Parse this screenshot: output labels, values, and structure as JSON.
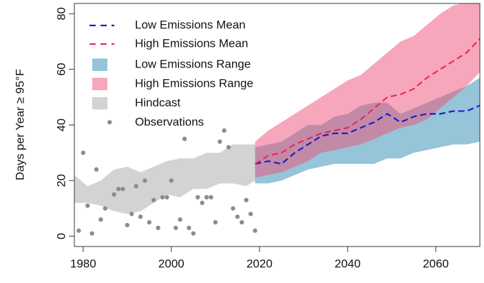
{
  "chart_data": {
    "type": "line",
    "y_label": "Days per Year ≥ 95°F",
    "xlim": [
      1978,
      2070
    ],
    "ylim": [
      -3.7,
      83.7
    ],
    "xticks": [
      1980,
      2000,
      2020,
      2040,
      2060
    ],
    "yticks": [
      0,
      20,
      40,
      60,
      80
    ],
    "legend": "top-left",
    "series": [
      {
        "name": "Low Emissions Mean",
        "type": "line",
        "color": "#1a1acc",
        "x": [
          2019,
          2022,
          2025,
          2028,
          2031,
          2034,
          2037,
          2040,
          2043,
          2046,
          2049,
          2052,
          2055,
          2058,
          2061,
          2064,
          2067,
          2070
        ],
        "values": [
          26,
          27,
          26,
          30,
          33,
          36,
          37,
          37,
          39,
          41,
          44,
          41,
          43,
          44,
          44,
          45,
          45,
          47
        ]
      },
      {
        "name": "High Emissions Mean",
        "type": "line",
        "color": "#e8285c",
        "x": [
          2019,
          2022,
          2025,
          2028,
          2031,
          2034,
          2037,
          2040,
          2043,
          2046,
          2049,
          2052,
          2055,
          2058,
          2061,
          2064,
          2067,
          2070
        ],
        "values": [
          26,
          29,
          30,
          33,
          35,
          37,
          38,
          39,
          42,
          46,
          50,
          51,
          53,
          57,
          60,
          63,
          66,
          71
        ]
      },
      {
        "name": "Low Emissions Range",
        "type": "band",
        "color": "#96c4d9",
        "x": [
          2019,
          2022,
          2025,
          2028,
          2031,
          2034,
          2037,
          2040,
          2043,
          2046,
          2049,
          2052,
          2055,
          2058,
          2061,
          2064,
          2067,
          2070
        ],
        "lower": [
          19,
          19,
          20,
          22,
          24,
          25,
          26,
          26,
          26,
          26,
          28,
          28,
          30,
          31,
          32,
          33,
          33,
          34
        ],
        "upper": [
          32,
          33,
          34,
          37,
          40,
          40,
          43,
          44,
          47,
          48,
          48,
          44,
          46,
          48,
          50,
          52,
          54,
          57
        ]
      },
      {
        "name": "High Emissions Range",
        "type": "band",
        "color": "rgba(240,80,120,0.5)",
        "x": [
          2019,
          2022,
          2025,
          2028,
          2031,
          2034,
          2037,
          2040,
          2043,
          2046,
          2049,
          2052,
          2055,
          2058,
          2061,
          2064,
          2067,
          2070
        ],
        "lower": [
          21,
          22,
          23,
          25,
          27,
          30,
          31,
          32,
          33,
          35,
          37,
          39,
          40,
          42,
          46,
          50,
          54,
          59
        ],
        "upper": [
          34,
          38,
          41,
          44,
          47,
          50,
          53,
          56,
          58,
          62,
          66,
          70,
          72,
          76,
          80,
          83,
          84,
          84
        ]
      },
      {
        "name": "Hindcast",
        "type": "band",
        "color": "#d3d3d3",
        "x": [
          1978,
          1981,
          1984,
          1987,
          1990,
          1993,
          1996,
          1999,
          2002,
          2005,
          2008,
          2011,
          2014,
          2017,
          2019
        ],
        "lower": [
          12,
          12,
          11,
          9,
          8,
          9,
          12,
          15,
          14,
          17,
          17,
          19,
          19,
          18,
          20
        ],
        "upper": [
          22,
          18,
          20,
          24,
          25,
          23,
          25,
          27,
          28,
          28,
          30,
          30,
          33,
          33,
          33
        ]
      },
      {
        "name": "Observations",
        "type": "scatter",
        "color": "#8c8c8c",
        "x": [
          1979,
          1980,
          1981,
          1982,
          1983,
          1984,
          1985,
          1986,
          1987,
          1988,
          1989,
          1990,
          1991,
          1992,
          1993,
          1994,
          1995,
          1996,
          1997,
          1998,
          1999,
          2000,
          2001,
          2002,
          2003,
          2004,
          2005,
          2006,
          2007,
          2008,
          2009,
          2010,
          2011,
          2012,
          2013,
          2014,
          2015,
          2016,
          2017,
          2018,
          2019
        ],
        "values": [
          2,
          30,
          11,
          1,
          24,
          6,
          10,
          41,
          15,
          17,
          17,
          4,
          8,
          18,
          7,
          20,
          5,
          13,
          3,
          14,
          14,
          20,
          3,
          6,
          35,
          3,
          1,
          14,
          12,
          14,
          14,
          5,
          34,
          38,
          32,
          10,
          7,
          5,
          13,
          8,
          2
        ]
      }
    ]
  }
}
